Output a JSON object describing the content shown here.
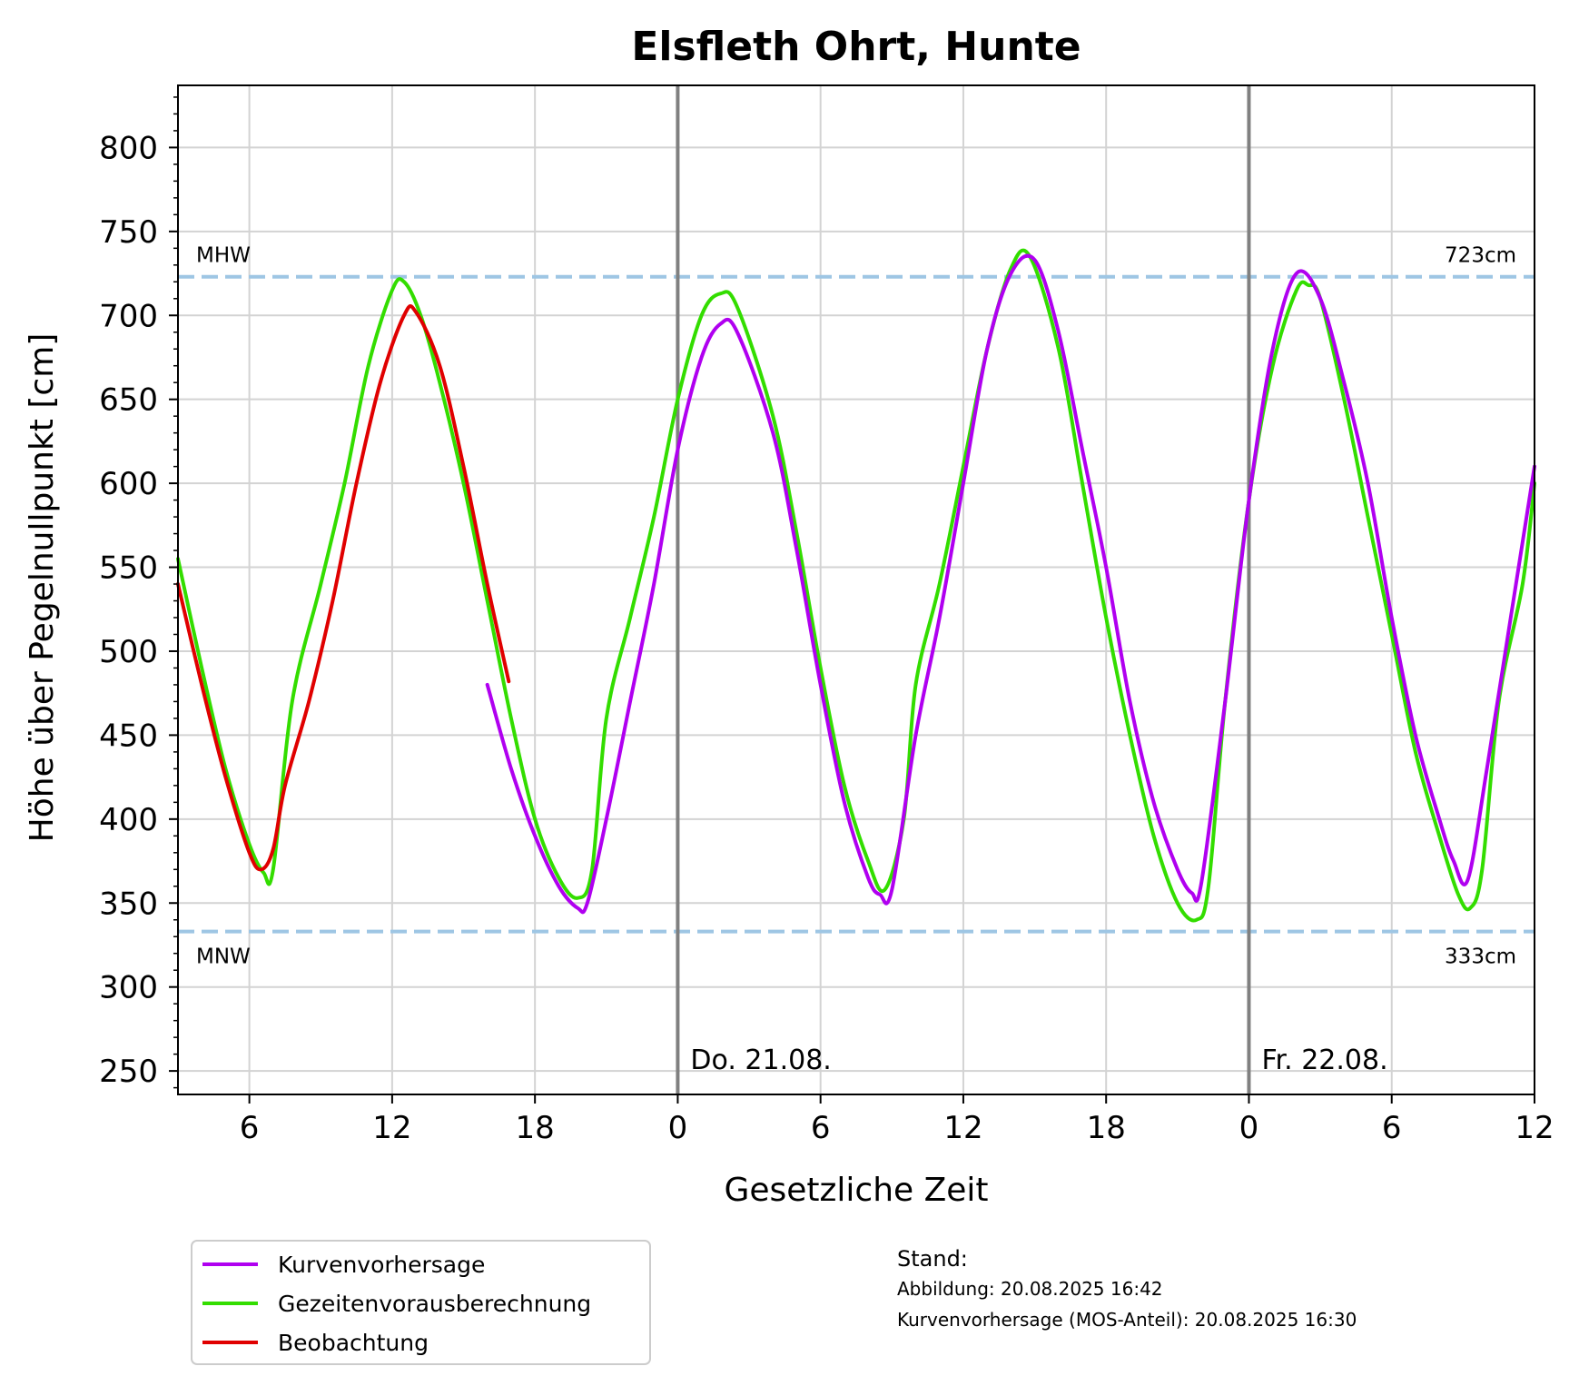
{
  "chart_data": {
    "type": "line",
    "title": "Elsfleth Ohrt, Hunte",
    "xlabel": "Gesetzliche Zeit",
    "ylabel": "Höhe über Pegelnullpunkt [cm]",
    "x_unit": "hour",
    "xlim": [
      3,
      60
    ],
    "ylim": [
      236,
      837
    ],
    "x_ticks": [
      6,
      12,
      18,
      24,
      30,
      36,
      42,
      48,
      54,
      60
    ],
    "x_tick_labels": [
      "6",
      "12",
      "18",
      "0",
      "6",
      "12",
      "18",
      "0",
      "6",
      "12"
    ],
    "y_ticks": [
      250,
      300,
      350,
      400,
      450,
      500,
      550,
      600,
      650,
      700,
      750,
      800
    ],
    "grid": true,
    "day_markers": [
      {
        "x": 24,
        "label": "Do. 21.08."
      },
      {
        "x": 48,
        "label": "Fr. 22.08."
      }
    ],
    "reference_lines": [
      {
        "name": "MHW",
        "value": 723,
        "value_label": "723cm",
        "label_position": "above"
      },
      {
        "name": "MNW",
        "value": 333,
        "value_label": "333cm",
        "label_position": "below"
      }
    ],
    "series": [
      {
        "name": "Kurvenvorhersage",
        "color": "#b000f0",
        "points": [
          [
            16,
            480
          ],
          [
            17,
            430
          ],
          [
            18,
            390
          ],
          [
            19,
            360
          ],
          [
            19.8,
            347
          ],
          [
            20.2,
            350
          ],
          [
            21,
            400
          ],
          [
            22,
            470
          ],
          [
            23,
            540
          ],
          [
            24,
            620
          ],
          [
            25,
            675
          ],
          [
            25.8,
            695
          ],
          [
            26.5,
            690
          ],
          [
            28,
            630
          ],
          [
            29,
            560
          ],
          [
            30,
            480
          ],
          [
            31,
            410
          ],
          [
            32,
            365
          ],
          [
            32.5,
            355
          ],
          [
            33,
            358
          ],
          [
            34,
            450
          ],
          [
            35,
            520
          ],
          [
            36,
            600
          ],
          [
            37,
            680
          ],
          [
            38,
            725
          ],
          [
            39,
            733
          ],
          [
            40,
            690
          ],
          [
            41,
            620
          ],
          [
            42,
            550
          ],
          [
            43,
            470
          ],
          [
            44,
            410
          ],
          [
            45,
            370
          ],
          [
            45.6,
            356
          ],
          [
            46,
            362
          ],
          [
            47,
            470
          ],
          [
            48,
            590
          ],
          [
            49,
            680
          ],
          [
            50,
            725
          ],
          [
            51,
            710
          ],
          [
            52,
            660
          ],
          [
            53,
            600
          ],
          [
            54,
            520
          ],
          [
            55,
            450
          ],
          [
            56,
            400
          ],
          [
            56.6,
            375
          ],
          [
            57.2,
            364
          ],
          [
            58,
            430
          ],
          [
            59,
            520
          ],
          [
            60,
            610
          ]
        ]
      },
      {
        "name": "Gezeitenvorausberechnung",
        "color": "#33dd00",
        "points": [
          [
            3,
            555
          ],
          [
            4,
            490
          ],
          [
            5,
            430
          ],
          [
            6,
            385
          ],
          [
            6.6,
            368
          ],
          [
            7,
            370
          ],
          [
            7.8,
            470
          ],
          [
            9,
            540
          ],
          [
            10,
            600
          ],
          [
            11,
            670
          ],
          [
            12,
            715
          ],
          [
            12.5,
            720
          ],
          [
            13.2,
            700
          ],
          [
            14,
            660
          ],
          [
            15,
            600
          ],
          [
            16,
            530
          ],
          [
            17,
            460
          ],
          [
            18,
            400
          ],
          [
            19,
            365
          ],
          [
            19.8,
            353
          ],
          [
            20.4,
            370
          ],
          [
            21,
            460
          ],
          [
            22,
            520
          ],
          [
            23,
            580
          ],
          [
            24,
            650
          ],
          [
            25,
            700
          ],
          [
            25.8,
            713
          ],
          [
            26.5,
            705
          ],
          [
            28,
            640
          ],
          [
            29,
            570
          ],
          [
            30,
            490
          ],
          [
            31,
            420
          ],
          [
            32,
            375
          ],
          [
            32.7,
            358
          ],
          [
            33.5,
            400
          ],
          [
            34,
            480
          ],
          [
            35,
            540
          ],
          [
            36,
            610
          ],
          [
            37,
            680
          ],
          [
            38,
            728
          ],
          [
            38.8,
            735
          ],
          [
            40,
            680
          ],
          [
            41,
            600
          ],
          [
            42,
            520
          ],
          [
            43,
            450
          ],
          [
            44,
            390
          ],
          [
            45,
            350
          ],
          [
            45.8,
            340
          ],
          [
            46.3,
            360
          ],
          [
            47,
            470
          ],
          [
            48,
            590
          ],
          [
            49,
            670
          ],
          [
            50,
            715
          ],
          [
            50.5,
            718
          ],
          [
            51,
            710
          ],
          [
            52,
            650
          ],
          [
            53,
            580
          ],
          [
            54,
            510
          ],
          [
            55,
            440
          ],
          [
            56,
            390
          ],
          [
            56.8,
            355
          ],
          [
            57.3,
            347
          ],
          [
            57.8,
            370
          ],
          [
            58.5,
            470
          ],
          [
            59.5,
            540
          ],
          [
            60,
            600
          ]
        ]
      },
      {
        "name": "Beobachtung",
        "color": "#e00000",
        "points": [
          [
            3,
            540
          ],
          [
            4,
            480
          ],
          [
            5,
            425
          ],
          [
            6,
            380
          ],
          [
            6.5,
            370
          ],
          [
            7,
            382
          ],
          [
            7.5,
            420
          ],
          [
            8.5,
            470
          ],
          [
            9.5,
            530
          ],
          [
            10.5,
            600
          ],
          [
            11.5,
            660
          ],
          [
            12.5,
            700
          ],
          [
            13,
            702
          ],
          [
            14,
            670
          ],
          [
            15,
            610
          ],
          [
            16,
            540
          ],
          [
            16.9,
            482
          ]
        ]
      }
    ],
    "legend": {
      "position": "below-left",
      "entries": [
        "Kurvenvorhersage",
        "Gezeitenvorausberechnung",
        "Beobachtung"
      ]
    }
  },
  "stand": {
    "heading": "Stand:",
    "line1": "Abbildung: 20.08.2025 16:42",
    "line2": "Kurvenvorhersage (MOS-Anteil): 20.08.2025 16:30"
  }
}
